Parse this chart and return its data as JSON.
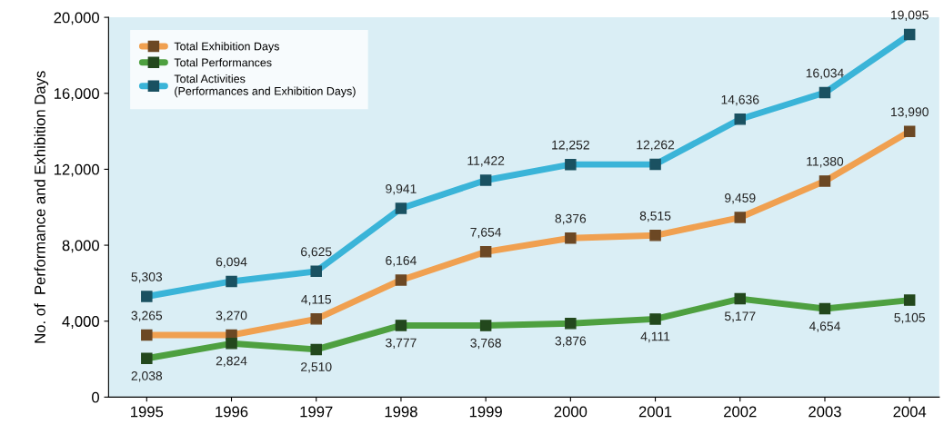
{
  "chart_data": {
    "type": "line",
    "ylabel": "No. of  Performance and Exhibition Days",
    "categories": [
      "1995",
      "1996",
      "1997",
      "1998",
      "1999",
      "2000",
      "2001",
      "2002",
      "2003",
      "2004"
    ],
    "series": [
      {
        "name": "Total Exhibition Days",
        "color": "#f0a050",
        "values": [
          3265,
          3270,
          4115,
          6164,
          7654,
          8376,
          8515,
          9459,
          11380,
          13990
        ],
        "value_labels": [
          "3,265",
          "3,270",
          "4,115",
          "6,164",
          "7,654",
          "8,376",
          "8,515",
          "9,459",
          "11,380",
          "13,990"
        ]
      },
      {
        "name": "Total Performances",
        "color": "#4ea040",
        "values": [
          2038,
          2824,
          2510,
          3777,
          3768,
          3876,
          4111,
          5177,
          4654,
          5105
        ],
        "value_labels": [
          "2,038",
          "2,824",
          "2,510",
          "3,777",
          "3,768",
          "3,876",
          "4,111",
          "5,177",
          "4,654",
          "5,105"
        ]
      },
      {
        "name": "Total Activities\n(Performances and Exhibition Days)",
        "color": "#3ab4d8",
        "values": [
          5303,
          6094,
          6625,
          9941,
          11422,
          12252,
          12262,
          14636,
          16034,
          19095
        ],
        "value_labels": [
          "5,303",
          "6,094",
          "6,625",
          "9,941",
          "11,422",
          "12,252",
          "12,262",
          "14,636",
          "16,034",
          "19,095"
        ]
      }
    ],
    "ylim": [
      0,
      20000
    ],
    "yticks": [
      {
        "value": 0,
        "label": "0"
      },
      {
        "value": 4000,
        "label": "4,000"
      },
      {
        "value": 8000,
        "label": "8,000"
      },
      {
        "value": 12000,
        "label": "12,000"
      },
      {
        "value": 16000,
        "label": "16,000"
      },
      {
        "value": 20000,
        "label": "20,000"
      }
    ],
    "marker": "square",
    "line_style": "solid",
    "legend": "top left",
    "grid": false
  }
}
